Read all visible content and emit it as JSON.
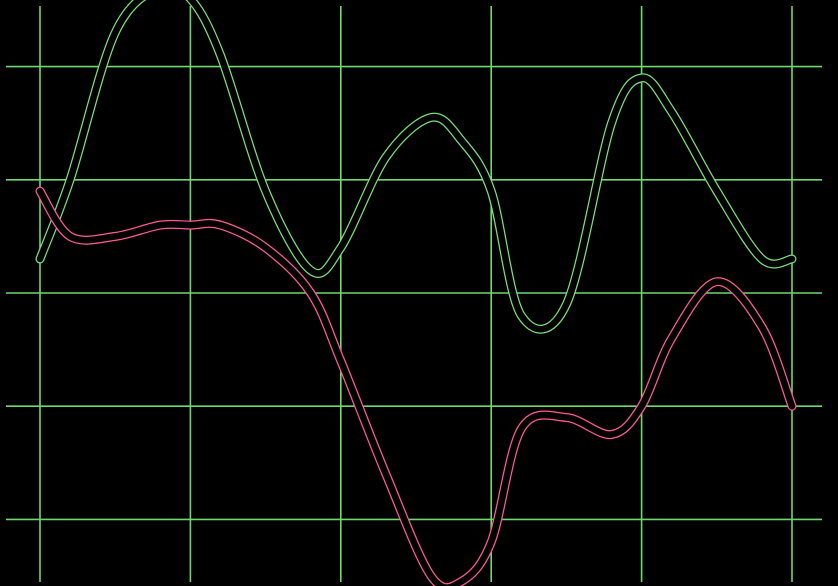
{
  "chart_data": {
    "type": "line",
    "title": "",
    "xlabel": "",
    "ylabel": "",
    "grid": true,
    "legend": "none",
    "xlim": [
      0,
      5
    ],
    "ylim": [
      -2.5,
      2.5
    ],
    "x_gridlines": [
      0,
      1,
      2,
      3,
      4,
      5
    ],
    "y_gridlines": [
      -2,
      -1,
      0,
      1,
      2
    ],
    "series": [
      {
        "x": [
          0,
          0.2,
          0.5,
          0.8,
          1.0,
          1.2,
          1.5,
          1.8,
          2.0,
          2.3,
          2.6,
          2.8,
          3.0,
          3.2,
          3.5,
          3.8,
          4.0,
          4.2,
          4.5,
          4.8,
          5.0
        ],
        "values": [
          0.3,
          1.0,
          2.3,
          2.7,
          2.6,
          2.1,
          0.9,
          0.2,
          0.4,
          1.2,
          1.55,
          1.35,
          0.9,
          -0.2,
          -0.1,
          1.5,
          1.9,
          1.6,
          0.9,
          0.3,
          0.3
        ],
        "color": "#7be07b"
      },
      {
        "x": [
          0,
          0.2,
          0.5,
          0.8,
          1.0,
          1.2,
          1.5,
          1.8,
          2.0,
          2.3,
          2.6,
          2.8,
          3.0,
          3.2,
          3.5,
          3.8,
          4.0,
          4.2,
          4.5,
          4.8,
          5.0
        ],
        "values": [
          0.9,
          0.5,
          0.5,
          0.6,
          0.6,
          0.6,
          0.4,
          0.0,
          -0.6,
          -1.6,
          -2.5,
          -2.55,
          -2.2,
          -1.2,
          -1.1,
          -1.25,
          -1.0,
          -0.4,
          0.1,
          -0.3,
          -1.0
        ],
        "color": "#ff5a9a"
      }
    ]
  }
}
